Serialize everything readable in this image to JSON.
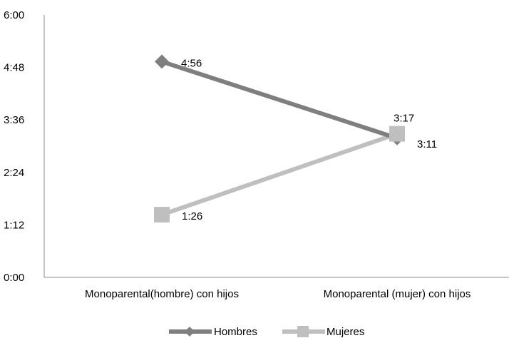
{
  "chart_data": {
    "type": "line",
    "categories": [
      "Monoparental(hombre) con hijos",
      "Monoparental (mujer) con hijos"
    ],
    "y_ticks": [
      "0:00",
      "1:12",
      "2:24",
      "3:36",
      "4:48",
      "6:00"
    ],
    "y_tick_minutes": [
      0,
      72,
      144,
      216,
      288,
      360
    ],
    "ylim_minutes": [
      0,
      360
    ],
    "series": [
      {
        "name": "Hombres",
        "color": "#7f7f7f",
        "marker": "diamond",
        "values_minutes": [
          296,
          191
        ],
        "labels": [
          "4:56",
          "3:11"
        ]
      },
      {
        "name": "Mujeres",
        "color": "#bfbfbf",
        "marker": "square",
        "values_minutes": [
          86,
          197
        ],
        "labels": [
          "1:26",
          "3:17"
        ]
      }
    ],
    "legend_position": "bottom",
    "grid": false
  }
}
